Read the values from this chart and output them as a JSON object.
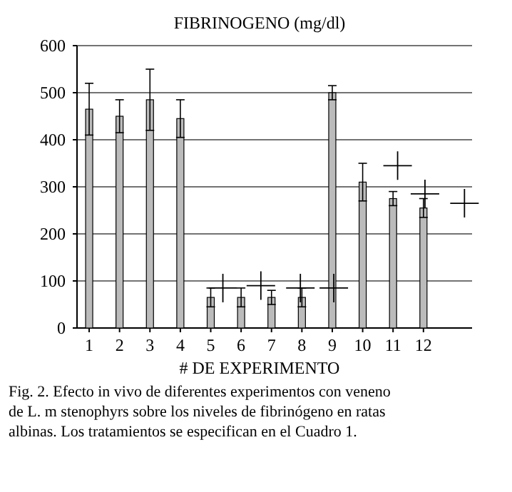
{
  "chart_data": {
    "type": "bar",
    "title": "FIBRINOGENO (mg/dl)",
    "xlabel": "# DE EXPERIMENTO",
    "x": [
      1,
      2,
      3,
      4,
      5,
      6,
      7,
      8,
      9,
      10,
      11,
      12
    ],
    "xlim": [
      0.6,
      13.6
    ],
    "xticks": [
      1,
      2,
      3,
      4,
      5,
      6,
      7,
      8,
      9,
      10,
      11,
      12
    ],
    "ylim": [
      0,
      600
    ],
    "yticks": [
      0,
      100,
      200,
      300,
      400,
      500,
      600
    ],
    "grid": "y",
    "series": [
      {
        "color": "#bbbbbb",
        "values": [
          465,
          450,
          485,
          445,
          65,
          65,
          65,
          65,
          500,
          310,
          275,
          255
        ],
        "errors": [
          55,
          35,
          65,
          40,
          20,
          20,
          15,
          20,
          15,
          40,
          15,
          20
        ]
      },
      {
        "type": "scatter",
        "marker": "cross",
        "color": "#000000",
        "x": [
          5.4,
          6.65,
          7.95,
          9.05,
          11.15,
          12.05,
          13.35
        ],
        "values": [
          85,
          90,
          85,
          85,
          345,
          285,
          265
        ]
      }
    ],
    "annotations": [
      "Fig. 2. Efecto in vivo de diferentes experimentos con veneno de L. m stenophyrs sobre los niveles de fibrinógeno en ratas albinas. Los tratamientos se especifican en el Cuadro 1."
    ]
  }
}
